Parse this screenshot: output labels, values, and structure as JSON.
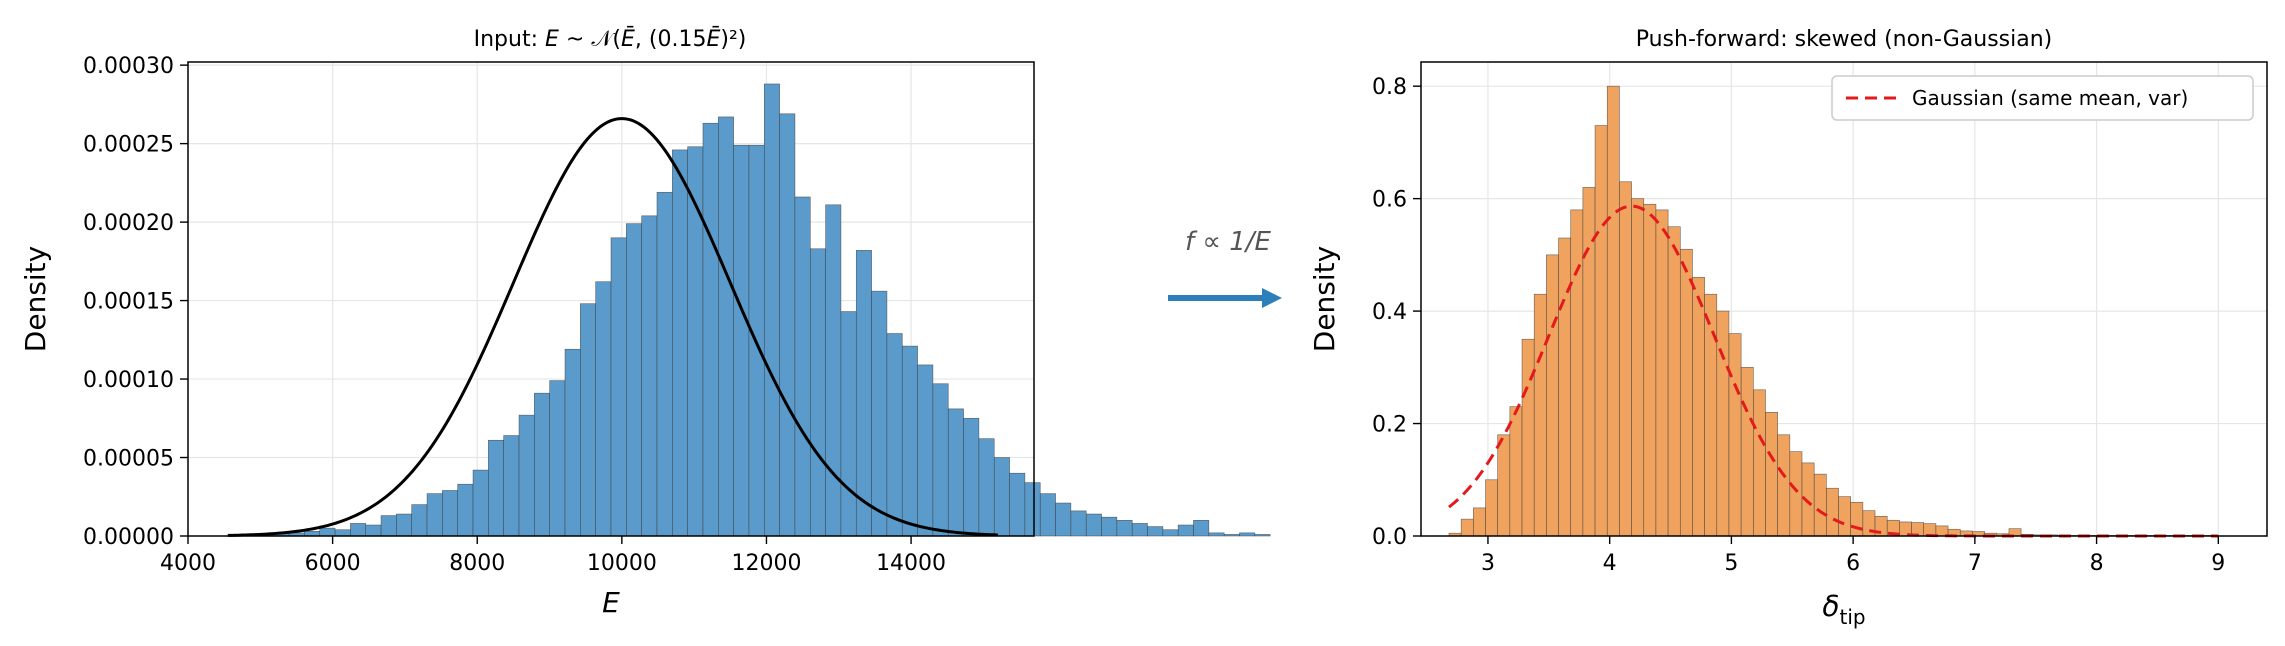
{
  "colors": {
    "hist_left": "#5b9bcb",
    "hist_right": "#f0a35e",
    "pdf_left": "#000000",
    "pdf_right": "#e31a1c",
    "arrow": "#2c7fb8",
    "grid": "#e6e6e6"
  },
  "arrow": {
    "label": "f ∝ 1/E",
    "icon": "right-arrow-icon"
  },
  "chart_data": [
    {
      "type": "histogram",
      "title": "Input: E ~ 𝒩(Ē, (0.15Ē)²)",
      "xlabel": "E",
      "ylabel": "Density",
      "xlim": [
        4000,
        15700
      ],
      "ylim": [
        0,
        0.000302
      ],
      "xticks": [
        4000,
        6000,
        8000,
        10000,
        12000,
        14000
      ],
      "xtick_labels": [
        "4000",
        "6000",
        "8000",
        "10000",
        "12000",
        "14000"
      ],
      "yticks": [
        0,
        5e-05,
        0.0001,
        0.00015,
        0.0002,
        0.00025,
        0.0003
      ],
      "ytick_labels": [
        "0.00000",
        "0.00005",
        "0.00010",
        "0.00015",
        "0.00020",
        "0.00025",
        "0.00030"
      ],
      "grid": true,
      "bins": {
        "start": 4550,
        "width": 212,
        "densities": [
          2e-07,
          1e-06,
          1e-06,
          2e-06,
          2e-06,
          3e-06,
          5e-06,
          4e-06,
          8e-06,
          7e-06,
          1.3e-05,
          1.4e-05,
          2e-05,
          2.7e-05,
          2.9e-05,
          3.3e-05,
          4.2e-05,
          6.1e-05,
          6.4e-05,
          7.7e-05,
          9.1e-05,
          9.9e-05,
          0.000119,
          0.000148,
          0.000162,
          0.00019,
          0.000199,
          0.000204,
          0.000219,
          0.000246,
          0.000248,
          0.000263,
          0.000267,
          0.000249,
          0.000249,
          0.000288,
          0.000269,
          0.000216,
          0.000183,
          0.000211,
          0.000143,
          0.000182,
          0.000156,
          0.000129,
          0.000121,
          0.000109,
          9.7e-05,
          8.1e-05,
          7.5e-05,
          6.2e-05,
          5e-05,
          4e-05,
          3.4e-05,
          2.7e-05,
          2.1e-05,
          1.6e-05,
          1.4e-05,
          1.2e-05,
          1e-05,
          8e-06,
          6e-06,
          4e-06,
          7e-06,
          1e-05,
          2e-06,
          1e-06,
          2e-06,
          1e-06
        ]
      },
      "curve": {
        "kind": "normal",
        "mean": 10000,
        "sd": 1500,
        "xrange": [
          4550,
          15200
        ]
      }
    },
    {
      "type": "histogram",
      "title": "Push-forward: skewed (non-Gaussian)",
      "xlabel": "δ_tip",
      "ylabel": "Density",
      "xlim": [
        2.45,
        9.4
      ],
      "ylim": [
        0,
        0.843
      ],
      "xticks": [
        3,
        4,
        5,
        6,
        7,
        8,
        9
      ],
      "xtick_labels": [
        "3",
        "4",
        "5",
        "6",
        "7",
        "8",
        "9"
      ],
      "yticks": [
        0,
        0.2,
        0.4,
        0.6,
        0.8
      ],
      "ytick_labels": [
        "0.0",
        "0.2",
        "0.4",
        "0.6",
        "0.8"
      ],
      "grid": true,
      "legend": {
        "position": "upper right",
        "entries": [
          "Gaussian (same mean, var)"
        ]
      },
      "bins": {
        "start": 2.68,
        "width": 0.1,
        "densities": [
          0.005,
          0.03,
          0.05,
          0.1,
          0.18,
          0.23,
          0.35,
          0.43,
          0.5,
          0.53,
          0.58,
          0.62,
          0.73,
          0.8,
          0.63,
          0.6,
          0.59,
          0.58,
          0.55,
          0.51,
          0.46,
          0.43,
          0.4,
          0.36,
          0.3,
          0.26,
          0.22,
          0.18,
          0.15,
          0.13,
          0.11,
          0.085,
          0.07,
          0.06,
          0.045,
          0.035,
          0.028,
          0.025,
          0.024,
          0.022,
          0.018,
          0.012,
          0.009,
          0.008,
          0.005,
          0.004,
          0.013,
          0.003,
          0.002,
          0.002,
          0.001,
          0.001,
          0.001,
          0.001,
          0.001,
          0.001,
          0.001,
          0.001,
          0.001,
          0.001,
          0.001,
          0.001,
          0.001
        ]
      },
      "curve": {
        "kind": "normal",
        "mean": 4.18,
        "sd": 0.68,
        "xrange": [
          2.68,
          9.0
        ]
      }
    }
  ]
}
